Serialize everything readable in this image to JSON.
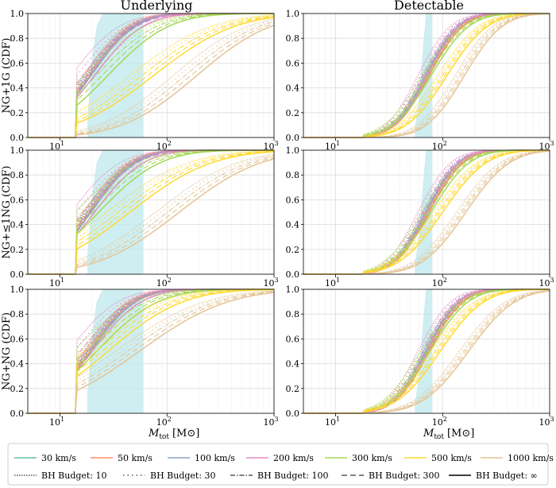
{
  "col_titles": [
    "Underlying",
    "Detectable"
  ],
  "row_labels": [
    "NG+1G (CDF)",
    "NG+≤1NG (CDF)",
    "NG+NG (CDF)"
  ],
  "xlabel_main": "M",
  "xlabel_sub": "tot",
  "xlabel_unit": "[M⊙]",
  "x_tick_labels": [
    "10",
    "10",
    "10"
  ],
  "x_tick_exponents": [
    "1",
    "2",
    "3"
  ],
  "y_tick_labels": [
    "0.0",
    "0.2",
    "0.4",
    "0.6",
    "0.8",
    "1.0"
  ],
  "legend": {
    "speeds": [
      {
        "label": "30 km/s",
        "color": "#66c2a5"
      },
      {
        "label": "50 km/s",
        "color": "#fc8d62"
      },
      {
        "label": "100 km/s",
        "color": "#8da0cb"
      },
      {
        "label": "200 km/s",
        "color": "#e78ac3"
      },
      {
        "label": "300 km/s",
        "color": "#a6d854"
      },
      {
        "label": "500 km/s",
        "color": "#ffd92f"
      },
      {
        "label": "1000 km/s",
        "color": "#e5c494"
      }
    ],
    "budgets": [
      {
        "label": "BH Budget: 10",
        "dash": "1.5,1.5"
      },
      {
        "label": "BH Budget: 30",
        "dash": "1.5,4"
      },
      {
        "label": "BH Budget: 100",
        "dash": "6,2,1.5,2"
      },
      {
        "label": "BH Budget: 300",
        "dash": "7,4"
      },
      {
        "label": "BH Budget: ∞",
        "dash": ""
      }
    ]
  },
  "chart_data": {
    "type": "line",
    "layout": "3 rows x 2 columns of cumulative distribution functions",
    "x_scale": "log",
    "xlim": [
      5,
      1000
    ],
    "ylim": [
      0,
      1
    ],
    "xlabel": "M_tot [M_sun]",
    "ylabel": "CDF",
    "shaded_band_color": "#bde8ec",
    "note": "Each panel: 7 kick speeds x BH budgets; solid = BH Budget infinity. medians in M_sun (approximate).",
    "panels": [
      {
        "row": "NG+1G (CDF)",
        "col": "Underlying",
        "band": {
          "x": [
            18,
            20,
            22,
            25,
            30,
            40,
            60
          ],
          "y": [
            0.15,
            0.65,
            0.9,
            1.0,
            1.0,
            1.0,
            1.0
          ]
        },
        "medians": [
          19,
          19,
          19.5,
          21,
          28,
          75,
          190
        ],
        "widths": [
          0.32,
          0.32,
          0.33,
          0.36,
          0.45,
          0.6,
          0.55
        ]
      },
      {
        "row": "NG+1G (CDF)",
        "col": "Detectable",
        "band": {
          "x": [
            55,
            60,
            65,
            70,
            80
          ],
          "y": [
            0.08,
            0.3,
            0.7,
            1.0,
            1.0
          ]
        },
        "medians": [
          75,
          75,
          70,
          72,
          78,
          110,
          160
        ],
        "widths": [
          0.25,
          0.25,
          0.24,
          0.24,
          0.28,
          0.3,
          0.28
        ]
      },
      {
        "row": "NG+≤1NG (CDF)",
        "col": "Underlying",
        "band": {
          "x": [
            18,
            20,
            22,
            25,
            30,
            40,
            60
          ],
          "y": [
            0.15,
            0.65,
            0.9,
            1.0,
            1.0,
            1.0,
            1.0
          ]
        },
        "medians": [
          19,
          19,
          19.5,
          21,
          23,
          45,
          130
        ],
        "widths": [
          0.32,
          0.32,
          0.33,
          0.36,
          0.45,
          0.6,
          0.6
        ]
      },
      {
        "row": "NG+≤1NG (CDF)",
        "col": "Detectable",
        "band": {
          "x": [
            55,
            60,
            65,
            70,
            80
          ],
          "y": [
            0.08,
            0.3,
            0.7,
            1.0,
            1.0
          ]
        },
        "medians": [
          75,
          75,
          70,
          72,
          78,
          100,
          165
        ],
        "widths": [
          0.25,
          0.25,
          0.24,
          0.24,
          0.28,
          0.32,
          0.32
        ]
      },
      {
        "row": "NG+NG (CDF)",
        "col": "Underlying",
        "band": {
          "x": [
            18,
            20,
            22,
            25,
            30,
            40,
            60
          ],
          "y": [
            0.15,
            0.65,
            0.9,
            1.0,
            1.0,
            1.0,
            1.0
          ]
        },
        "medians": [
          19,
          19,
          19.5,
          20,
          22,
          28,
          55
        ],
        "widths": [
          0.32,
          0.32,
          0.33,
          0.36,
          0.45,
          0.55,
          0.65
        ]
      },
      {
        "row": "NG+NG (CDF)",
        "col": "Detectable",
        "band": {
          "x": [
            55,
            60,
            65,
            70,
            80
          ],
          "y": [
            0.08,
            0.3,
            0.7,
            1.0,
            1.0
          ]
        },
        "medians": [
          75,
          75,
          70,
          72,
          76,
          95,
          175
        ],
        "widths": [
          0.25,
          0.25,
          0.24,
          0.24,
          0.28,
          0.32,
          0.34
        ]
      }
    ]
  }
}
